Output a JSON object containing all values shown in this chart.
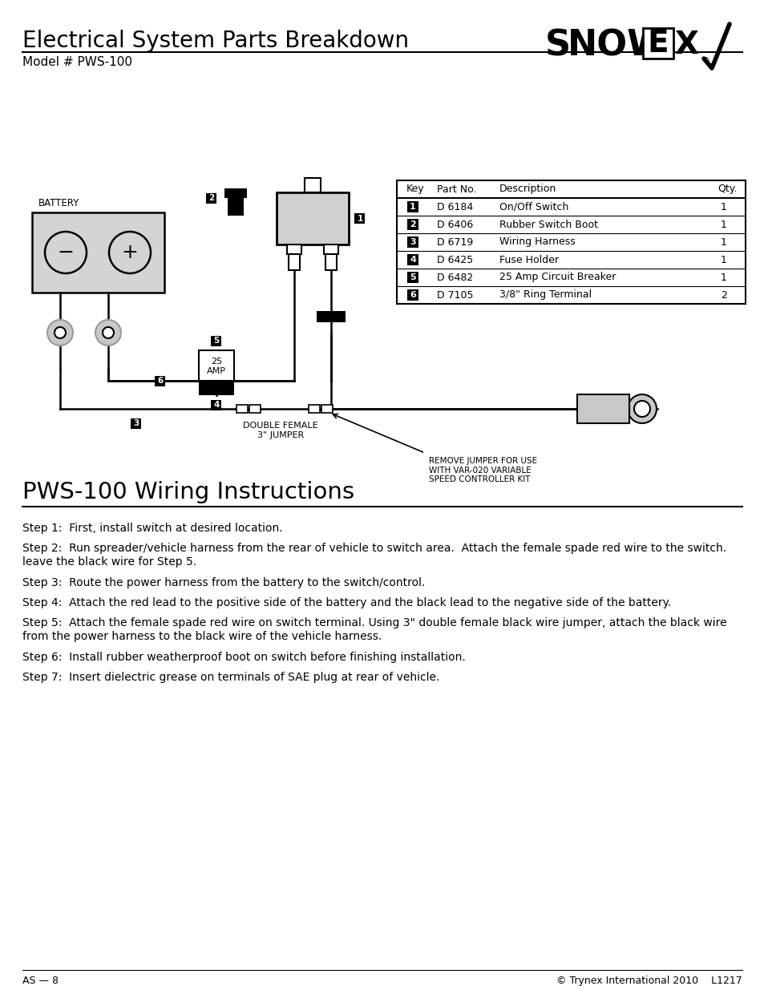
{
  "title": "Electrical System Parts Breakdown",
  "subtitle": "Model # PWS-100",
  "section2_title": "PWS-100 Wiring Instructions",
  "table_headers": [
    "Key",
    "Part No.",
    "Description",
    "Qty."
  ],
  "table_rows": [
    [
      "1",
      "D 6184",
      "On/Off Switch",
      "1"
    ],
    [
      "2",
      "D 6406",
      "Rubber Switch Boot",
      "1"
    ],
    [
      "3",
      "D 6719",
      "Wiring Harness",
      "1"
    ],
    [
      "4",
      "D 6425",
      "Fuse Holder",
      "1"
    ],
    [
      "5",
      "D 6482",
      "25 Amp Circuit Breaker",
      "1"
    ],
    [
      "6",
      "D 7105",
      "3/8\" Ring Terminal",
      "2"
    ]
  ],
  "steps": [
    "Step 1:  First, install switch at desired location.",
    "Step 2:  Run spreader/vehicle harness from the rear of vehicle to switch area.  Attach the female spade red wire to the switch.\nleave the black wire for Step 5.",
    "Step 3:  Route the power harness from the battery to the switch/control.",
    "Step 4:  Attach the red lead to the positive side of the battery and the black lead to the negative side of the battery.",
    "Step 5:  Attach the female spade red wire on switch terminal. Using 3\" double female black wire jumper, attach the black wire\nfrom the power harness to the black wire of the vehicle harness.",
    "Step 6:  Install rubber weatherproof boot on switch before finishing installation.",
    "Step 7:  Insert dielectric grease on terminals of SAE plug at rear of vehicle."
  ],
  "footer_left": "AS — 8",
  "footer_right": "© Trynex International 2010    L1217",
  "bg_color": "#ffffff",
  "diagram_label_battery": "BATTERY",
  "diagram_label_jumper": "DOUBLE FEMALE\n3\" JUMPER",
  "diagram_label_remove": "REMOVE JUMPER FOR USE\nWITH VAR-020 VARIABLE\nSPEED CONTROLLER KIT"
}
